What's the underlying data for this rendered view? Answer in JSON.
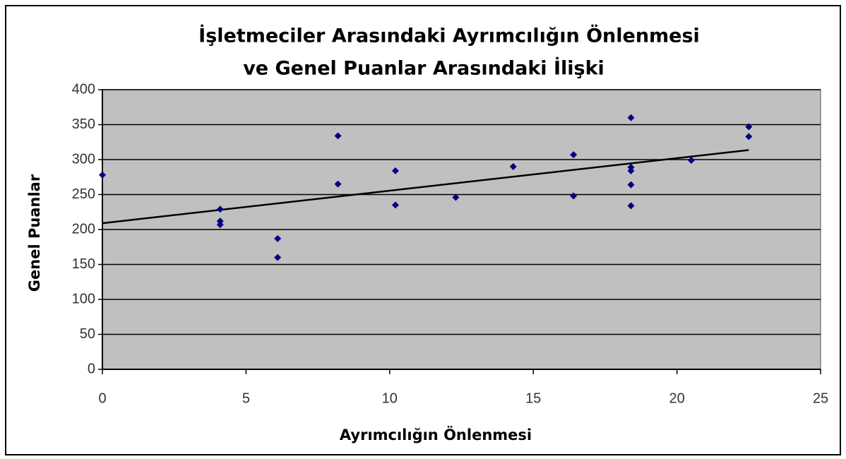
{
  "chart_data": {
    "type": "scatter",
    "title": [
      "İşletmeciler Arasındaki Ayrımcılığın Önlenmesi",
      "ve Genel Puanlar Arasındaki İlişki"
    ],
    "x_label": "Ayrımcılığın Önlenmesi",
    "y_label": "Genel Puanlar",
    "series": [
      {
        "color": "#000080",
        "x": [
          0,
          4.1,
          4.1,
          4.1,
          6.1,
          6.1,
          8.2,
          8.2,
          10.2,
          10.2,
          12.3,
          14.3,
          16.4,
          16.4,
          18.4,
          18.4,
          18.4,
          18.4,
          18.4,
          20.5,
          22.5,
          22.5
        ],
        "values": [
          278,
          229,
          212,
          207,
          187,
          160,
          334,
          265,
          284,
          235,
          246,
          290,
          307,
          248,
          360,
          289,
          284,
          264,
          234,
          299,
          347,
          333
        ]
      }
    ],
    "trendline": "linear",
    "xlim": [
      0,
      25
    ],
    "xticks": [
      0,
      5,
      10,
      15,
      20,
      25
    ],
    "ylim": [
      0,
      400
    ],
    "yticks": [
      0,
      50,
      100,
      150,
      200,
      250,
      300,
      350,
      400
    ],
    "grid": true,
    "plot_background": "#c0c0c0"
  }
}
